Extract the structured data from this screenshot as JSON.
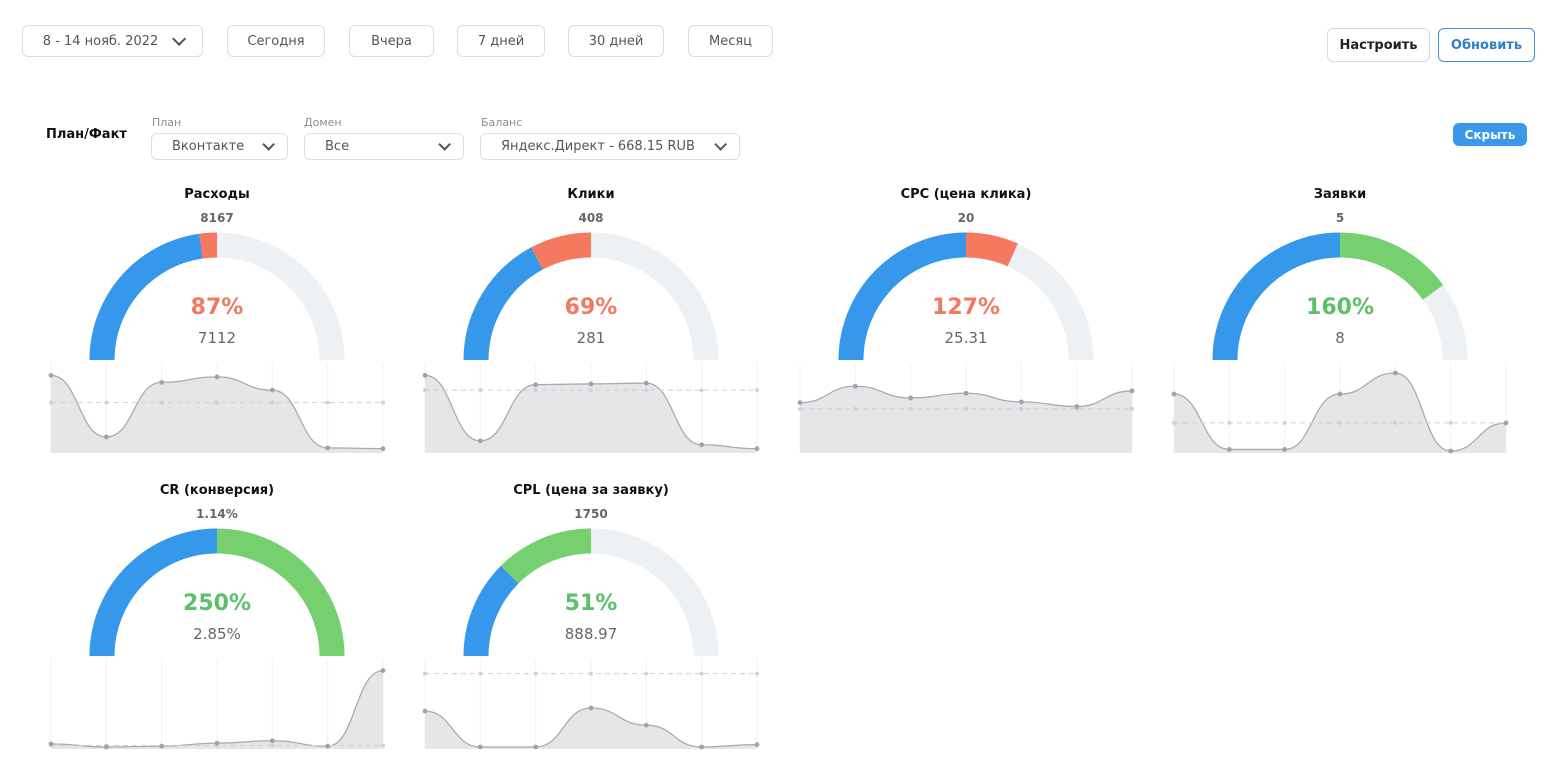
{
  "toolbar": {
    "date_range": "8 - 14 нояб. 2022",
    "periods": [
      "Сегодня",
      "Вчера",
      "7 дней",
      "30 дней",
      "Месяц"
    ],
    "configure_label": "Настроить",
    "refresh_label": "Обновить"
  },
  "filters": {
    "section_title": "План/Факт",
    "plan_label": "План",
    "plan_value": "Вконтакте",
    "domain_label": "Домен",
    "domain_value": "Все",
    "balance_label": "Баланс",
    "balance_value": "Яндекс.Директ - 668.15 RUB",
    "hide_label": "Скрыть"
  },
  "colors": {
    "blue": "#3598ea",
    "red": "#f6795f",
    "green": "#76d06f",
    "track": "#eef1f4",
    "pct_red": "#f07a62",
    "pct_green": "#5cbf6a"
  },
  "metrics": [
    {
      "title": "Расходы",
      "plan": "8167",
      "percent": "87%",
      "fact": "7112",
      "ratio": 0.87,
      "status": "red",
      "spark": [
        0.97,
        0.18,
        0.88,
        0.95,
        0.78,
        0.04,
        0.03
      ],
      "plan_line": 0.62
    },
    {
      "title": "Клики",
      "plan": "408",
      "percent": "69%",
      "fact": "281",
      "ratio": 0.69,
      "status": "red",
      "spark": [
        0.97,
        0.13,
        0.85,
        0.86,
        0.87,
        0.08,
        0.03
      ],
      "plan_line": 0.78
    },
    {
      "title": "CPC (цена клика)",
      "plan": "20",
      "percent": "127%",
      "fact": "25.31",
      "ratio": 1.27,
      "status": "red",
      "spark": [
        0.62,
        0.83,
        0.68,
        0.74,
        0.63,
        0.57,
        0.77
      ],
      "plan_line": 0.54
    },
    {
      "title": "Заявки",
      "plan": "5",
      "percent": "160%",
      "fact": "8",
      "ratio": 1.6,
      "status": "green",
      "spark": [
        0.73,
        0.02,
        0.02,
        0.73,
        1.0,
        0.0,
        0.36
      ],
      "plan_line": 0.36
    },
    {
      "title": "CR (конверсия)",
      "plan": "1.14%",
      "percent": "250%",
      "fact": "2.85%",
      "ratio": 2.5,
      "status": "green",
      "spark": [
        0.04,
        0.0,
        0.01,
        0.05,
        0.08,
        0.01,
        0.98
      ],
      "plan_line": 0.02
    },
    {
      "title": "CPL (цена за заявку)",
      "plan": "1750",
      "percent": "51%",
      "fact": "888.97",
      "ratio": 0.51,
      "status": "green",
      "spark": [
        0.46,
        0.0,
        0.0,
        0.5,
        0.28,
        0.0,
        0.03
      ],
      "plan_line": 0.94
    }
  ]
}
